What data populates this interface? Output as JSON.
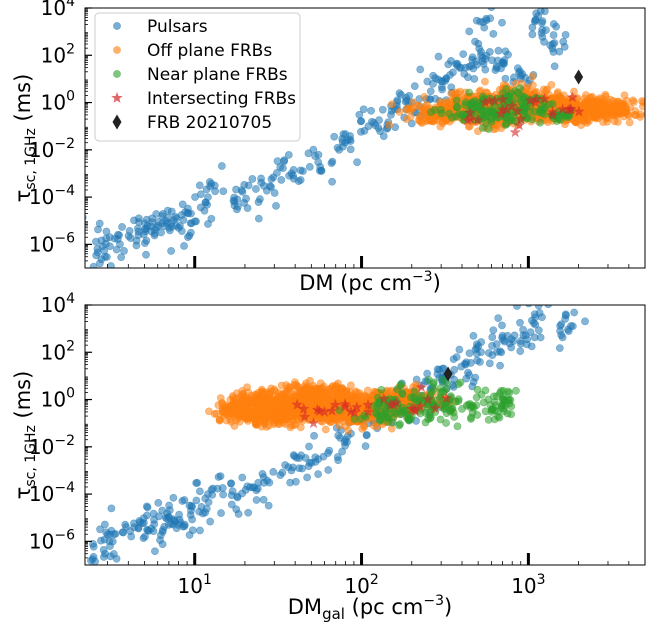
{
  "chart_data": [
    {
      "type": "scatter",
      "xscale": "log",
      "yscale": "log",
      "xlim": [
        2.2,
        5000
      ],
      "ylim": [
        1e-07,
        10000
      ],
      "xlabel_main": "DM (pc cm",
      "xlabel_sup": "−3",
      "xlabel_tail": ")",
      "ylabel_main": "τ",
      "ylabel_sub": "sc, 1GHz",
      "ylabel_tail": " (ms)",
      "xticks": [
        10,
        100,
        1000
      ],
      "xticklabels": [
        "",
        "",
        ""
      ],
      "yticks": [
        1e-06,
        0.0001,
        0.01,
        1,
        100,
        10000
      ],
      "yticklabels": [
        {
          "base": "10",
          "exp": "−6"
        },
        {
          "base": "10",
          "exp": "−4"
        },
        {
          "base": "10",
          "exp": "−2"
        },
        {
          "base": "10",
          "exp": "0"
        },
        {
          "base": "10",
          "exp": "2"
        },
        {
          "base": "10",
          "exp": "4"
        }
      ],
      "legend": {
        "placement": "upper-left",
        "entries": [
          {
            "label": "Pulsars",
            "marker": "circle",
            "color": "#1f77b4"
          },
          {
            "label": "Off plane FRBs",
            "marker": "circle",
            "color": "#ff7f0e"
          },
          {
            "label": "Near plane FRBs",
            "marker": "circle",
            "color": "#2ca02c"
          },
          {
            "label": "Intersecting FRBs",
            "marker": "star",
            "color": "#d62728"
          },
          {
            "label": "FRB 20210705",
            "marker": "diamond",
            "color": "#222222"
          }
        ]
      },
      "series": [
        {
          "name": "Pulsars",
          "marker": "circle",
          "color": "#1f77b4",
          "points": [
            [
              2.9,
              3e-07
            ],
            [
              3.1,
              2e-06
            ],
            [
              4.6,
              3.5e-06
            ],
            [
              5.5,
              3.5e-06
            ],
            [
              6.7,
              1e-05
            ],
            [
              8,
              5e-06
            ],
            [
              9.5,
              2e-05
            ],
            [
              12,
              0.0001
            ],
            [
              18,
              8e-05
            ],
            [
              26,
              0.0003
            ],
            [
              38,
              0.001
            ],
            [
              55,
              0.003
            ],
            [
              80,
              0.02
            ],
            [
              110,
              0.1
            ],
            [
              150,
              0.3
            ],
            [
              200,
              1
            ],
            [
              260,
              3
            ],
            [
              320,
              10
            ],
            [
              420,
              30
            ],
            [
              520,
              100
            ],
            [
              560,
              3000
            ],
            [
              700,
              50
            ],
            [
              900,
              10
            ],
            [
              1100,
              3000
            ],
            [
              1400,
              300
            ]
          ]
        },
        {
          "name": "Off plane FRBs",
          "marker": "circle",
          "color": "#ff7f0e",
          "points": [
            [
              300,
              0.3
            ],
            [
              400,
              0.5
            ],
            [
              500,
              1
            ],
            [
              650,
              0.2
            ],
            [
              800,
              2
            ],
            [
              1000,
              0.6
            ],
            [
              1300,
              1
            ],
            [
              1600,
              0.3
            ],
            [
              2000,
              0.8
            ],
            [
              2500,
              0.4
            ],
            [
              3000,
              0.5
            ]
          ]
        },
        {
          "name": "Near plane FRBs",
          "marker": "circle",
          "color": "#2ca02c",
          "points": [
            [
              400,
              0.3
            ],
            [
              500,
              1
            ],
            [
              600,
              0.2
            ],
            [
              750,
              0.5
            ],
            [
              900,
              2
            ],
            [
              1100,
              0.4
            ],
            [
              1400,
              0.3
            ]
          ]
        },
        {
          "name": "Intersecting FRBs",
          "marker": "star",
          "color": "#d62728",
          "points": [
            [
              450,
              0.2
            ],
            [
              550,
              1
            ],
            [
              700,
              0.5
            ],
            [
              900,
              0.2
            ],
            [
              1100,
              1
            ],
            [
              1400,
              0.3
            ],
            [
              1800,
              0.5
            ]
          ]
        },
        {
          "name": "FRB 20210705",
          "marker": "diamond",
          "color": "#222222",
          "points": [
            [
              2000,
              12
            ]
          ]
        }
      ]
    },
    {
      "type": "scatter",
      "xscale": "log",
      "yscale": "log",
      "xlim": [
        2.2,
        5000
      ],
      "ylim": [
        1e-07,
        10000
      ],
      "xlabel_main": "DM",
      "xlabel_sub": "gal",
      "xlabel_tail": " (pc cm",
      "xlabel_sup": "−3",
      "xlabel_end": ")",
      "ylabel_main": "τ",
      "ylabel_sub": "sc, 1GHz",
      "ylabel_tail": " (ms)",
      "xticks": [
        10,
        100,
        1000
      ],
      "xticklabels": [
        {
          "base": "10",
          "exp": "1"
        },
        {
          "base": "10",
          "exp": "2"
        },
        {
          "base": "10",
          "exp": "3"
        }
      ],
      "yticks": [
        1e-06,
        0.0001,
        0.01,
        1,
        100,
        10000
      ],
      "yticklabels": [
        {
          "base": "10",
          "exp": "−6"
        },
        {
          "base": "10",
          "exp": "−4"
        },
        {
          "base": "10",
          "exp": "−2"
        },
        {
          "base": "10",
          "exp": "0"
        },
        {
          "base": "10",
          "exp": "2"
        },
        {
          "base": "10",
          "exp": "4"
        }
      ],
      "series": [
        {
          "name": "Pulsars",
          "marker": "circle",
          "color": "#1f77b4",
          "points": [
            [
              2.9,
              3e-07
            ],
            [
              3.1,
              2e-06
            ],
            [
              4.6,
              3.5e-06
            ],
            [
              5.5,
              3.5e-06
            ],
            [
              6.7,
              1e-05
            ],
            [
              8,
              5e-06
            ],
            [
              9.5,
              2e-05
            ],
            [
              12,
              0.0001
            ],
            [
              18,
              8e-05
            ],
            [
              26,
              0.0003
            ],
            [
              38,
              0.001
            ],
            [
              55,
              0.003
            ],
            [
              80,
              0.02
            ],
            [
              110,
              0.1
            ],
            [
              150,
              0.3
            ],
            [
              200,
              1
            ],
            [
              260,
              3
            ],
            [
              320,
              10
            ],
            [
              420,
              30
            ],
            [
              520,
              100
            ],
            [
              700,
              500
            ],
            [
              900,
              300
            ],
            [
              1100,
              3000
            ],
            [
              1800,
              1300
            ]
          ]
        },
        {
          "name": "Off plane FRBs",
          "marker": "circle",
          "color": "#ff7f0e",
          "points": [
            [
              20,
              0.3
            ],
            [
              25,
              1
            ],
            [
              30,
              0.2
            ],
            [
              40,
              0.5
            ],
            [
              50,
              2
            ],
            [
              60,
              0.3
            ],
            [
              80,
              1
            ],
            [
              100,
              0.2
            ],
            [
              130,
              0.5
            ],
            [
              160,
              0.8
            ],
            [
              200,
              1
            ]
          ]
        },
        {
          "name": "Near plane FRBs",
          "marker": "circle",
          "color": "#2ca02c",
          "points": [
            [
              130,
              0.3
            ],
            [
              160,
              1
            ],
            [
              200,
              0.2
            ],
            [
              250,
              0.5
            ],
            [
              300,
              2
            ],
            [
              400,
              0.4
            ],
            [
              600,
              0.3
            ],
            [
              700,
              1
            ]
          ]
        },
        {
          "name": "Intersecting FRBs",
          "marker": "star",
          "color": "#d62728",
          "points": [
            [
              45,
              0.4
            ],
            [
              60,
              0.3
            ],
            [
              80,
              0.5
            ],
            [
              110,
              0.3
            ],
            [
              150,
              0.6
            ],
            [
              200,
              0.4
            ],
            [
              250,
              1
            ]
          ]
        },
        {
          "name": "FRB 20210705",
          "marker": "diamond",
          "color": "#222222",
          "points": [
            [
              330,
              12
            ]
          ]
        }
      ]
    }
  ]
}
